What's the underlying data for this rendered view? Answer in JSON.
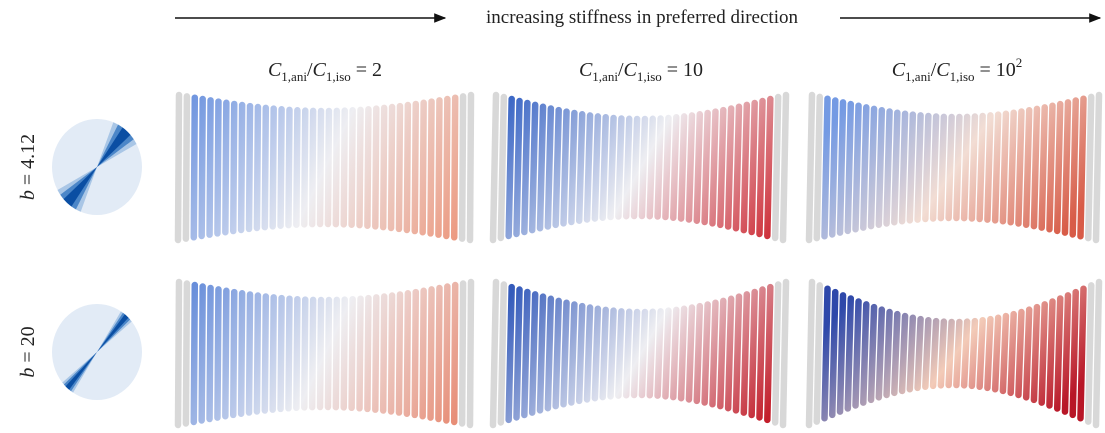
{
  "header": {
    "arrow_label": "increasing stiffness in preferred direction"
  },
  "columns": [
    {
      "parts": [
        "C",
        "1,ani",
        "/",
        "C",
        "1,iso",
        " = 2"
      ]
    },
    {
      "parts": [
        "C",
        "1,ani",
        "/",
        "C",
        "1,iso",
        " = 10"
      ]
    },
    {
      "parts": [
        "C",
        "1,ani",
        "/",
        "C",
        "1,iso",
        " = 10",
        "2"
      ]
    }
  ],
  "rows": [
    {
      "parts": [
        "b",
        " = 4.12"
      ]
    },
    {
      "parts": [
        "b",
        " = 20"
      ]
    }
  ]
}
